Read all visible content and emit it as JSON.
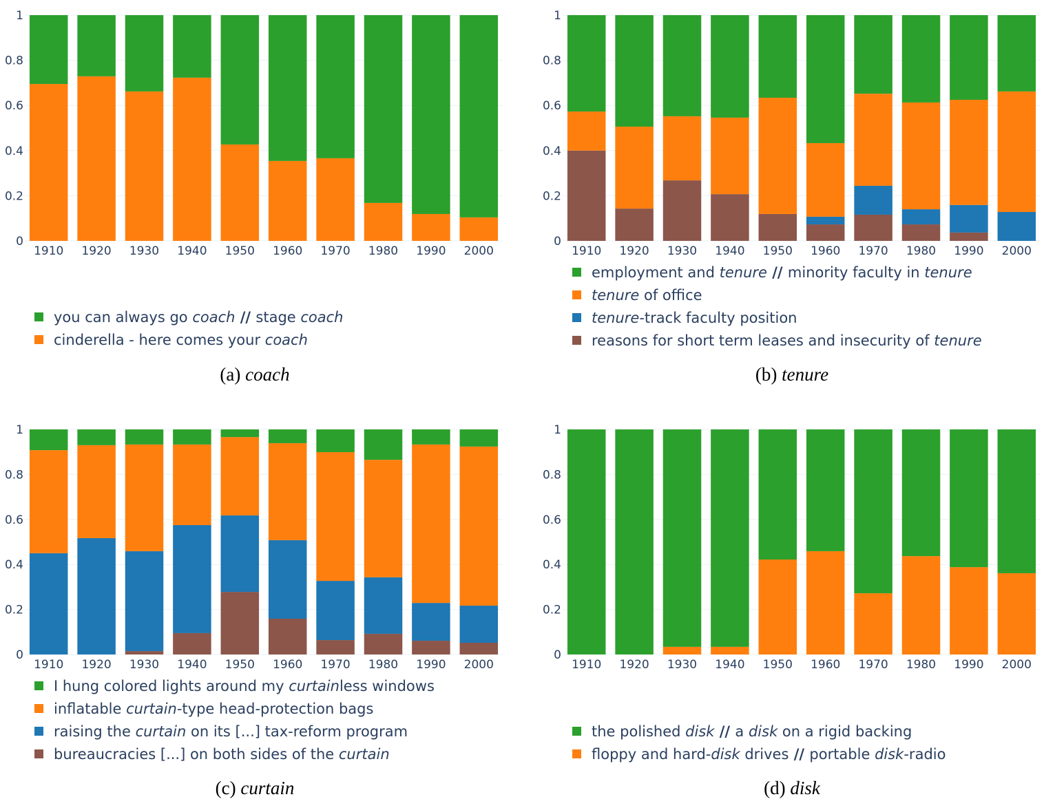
{
  "colors": {
    "green": "#2ca02c",
    "orange": "#ff7f0e",
    "blue": "#1f77b4",
    "brown": "#8c564b",
    "text": "#2a3f5f",
    "grid": "#ebf0f8"
  },
  "chart_data": [
    {
      "type": "bar",
      "stacked": true,
      "ylim": [
        0,
        1
      ],
      "yticks": [
        "0",
        "0.2",
        "0.4",
        "0.6",
        "0.8",
        "1"
      ],
      "categories": [
        "1910",
        "1920",
        "1930",
        "1940",
        "1950",
        "1960",
        "1970",
        "1980",
        "1990",
        "2000"
      ],
      "caption": {
        "label": "(a)",
        "word": "coach"
      },
      "series": [
        {
          "color": "orange",
          "values": [
            0.695,
            0.729,
            0.662,
            0.723,
            0.427,
            0.354,
            0.366,
            0.168,
            0.119,
            0.104
          ],
          "legend": [
            {
              "t": "cinderella - here comes your "
            },
            {
              "t": "coach",
              "i": true
            }
          ]
        },
        {
          "color": "green",
          "values": [
            0.305,
            0.271,
            0.338,
            0.277,
            0.573,
            0.646,
            0.634,
            0.832,
            0.881,
            0.896
          ],
          "legend": [
            {
              "t": "you can always go "
            },
            {
              "t": "coach",
              "i": true
            },
            {
              "t": " // ",
              "b": true
            },
            {
              "t": "stage "
            },
            {
              "t": "coach",
              "i": true
            }
          ]
        }
      ]
    },
    {
      "type": "bar",
      "stacked": true,
      "ylim": [
        0,
        1
      ],
      "yticks": [
        "0",
        "0.2",
        "0.4",
        "0.6",
        "0.8",
        "1"
      ],
      "categories": [
        "1910",
        "1920",
        "1930",
        "1940",
        "1950",
        "1960",
        "1970",
        "1980",
        "1990",
        "2000"
      ],
      "caption": {
        "label": "(b)",
        "word": "tenure"
      },
      "series": [
        {
          "color": "brown",
          "values": [
            0.4,
            0.143,
            0.268,
            0.207,
            0.119,
            0.073,
            0.116,
            0.073,
            0.037,
            0
          ],
          "legend": [
            {
              "t": "reasons for short term leases and insecurity of "
            },
            {
              "t": "tenure",
              "i": true
            }
          ]
        },
        {
          "color": "blue",
          "values": [
            0,
            0,
            0,
            0,
            0,
            0.034,
            0.128,
            0.067,
            0.122,
            0.128
          ],
          "legend": [
            {
              "t": "tenure",
              "i": true
            },
            {
              "t": "-track faculty position"
            }
          ]
        },
        {
          "color": "orange",
          "values": [
            0.173,
            0.363,
            0.284,
            0.339,
            0.515,
            0.326,
            0.408,
            0.473,
            0.466,
            0.534
          ],
          "legend": [
            {
              "t": "tenure",
              "i": true
            },
            {
              "t": " of office"
            }
          ]
        },
        {
          "color": "green",
          "values": [
            0.427,
            0.494,
            0.448,
            0.454,
            0.366,
            0.567,
            0.348,
            0.387,
            0.375,
            0.338
          ],
          "legend": [
            {
              "t": "employment and "
            },
            {
              "t": "tenure",
              "i": true
            },
            {
              "t": " // ",
              "b": true
            },
            {
              "t": "minority faculty in "
            },
            {
              "t": "tenure",
              "i": true
            }
          ]
        }
      ]
    },
    {
      "type": "bar",
      "stacked": true,
      "ylim": [
        0,
        1
      ],
      "yticks": [
        "0",
        "0.2",
        "0.4",
        "0.6",
        "0.8",
        "1"
      ],
      "categories": [
        "1910",
        "1920",
        "1930",
        "1940",
        "1950",
        "1960",
        "1970",
        "1980",
        "1990",
        "2000"
      ],
      "caption": {
        "label": "(c)",
        "word": "curtain"
      },
      "series": [
        {
          "color": "brown",
          "values": [
            0,
            0,
            0.015,
            0.095,
            0.278,
            0.159,
            0.064,
            0.092,
            0.061,
            0.052
          ],
          "legend": [
            {
              "t": "bureaucracies [...] on both sides of the "
            },
            {
              "t": "curtain",
              "i": true
            }
          ]
        },
        {
          "color": "blue",
          "values": [
            0.45,
            0.517,
            0.444,
            0.48,
            0.34,
            0.349,
            0.263,
            0.251,
            0.168,
            0.165
          ],
          "legend": [
            {
              "t": "raising the "
            },
            {
              "t": "curtain",
              "i": true
            },
            {
              "t": " on its [...] tax-reform program"
            }
          ]
        },
        {
          "color": "orange",
          "values": [
            0.458,
            0.413,
            0.474,
            0.358,
            0.348,
            0.431,
            0.572,
            0.522,
            0.704,
            0.707
          ],
          "legend": [
            {
              "t": "inflatable "
            },
            {
              "t": "curtain",
              "i": true
            },
            {
              "t": "-type head-protection bags"
            }
          ]
        },
        {
          "color": "green",
          "values": [
            0.092,
            0.07,
            0.067,
            0.067,
            0.034,
            0.061,
            0.101,
            0.135,
            0.067,
            0.076
          ],
          "legend": [
            {
              "t": "I hung colored lights around my "
            },
            {
              "t": "curtain",
              "i": true
            },
            {
              "t": "less windows"
            }
          ]
        }
      ]
    },
    {
      "type": "bar",
      "stacked": true,
      "ylim": [
        0,
        1
      ],
      "yticks": [
        "0",
        "0.2",
        "0.4",
        "0.6",
        "0.8",
        "1"
      ],
      "categories": [
        "1910",
        "1920",
        "1930",
        "1940",
        "1950",
        "1960",
        "1970",
        "1980",
        "1990",
        "2000"
      ],
      "caption": {
        "label": "(d)",
        "word": "disk"
      },
      "series": [
        {
          "color": "orange",
          "values": [
            0,
            0,
            0.034,
            0.034,
            0.422,
            0.459,
            0.272,
            0.437,
            0.388,
            0.361
          ],
          "legend": [
            {
              "t": "floppy and hard-"
            },
            {
              "t": "disk",
              "i": true
            },
            {
              "t": " drives"
            },
            {
              "t": " // ",
              "b": true
            },
            {
              "t": "portable "
            },
            {
              "t": "disk",
              "i": true
            },
            {
              "t": "-radio"
            }
          ]
        },
        {
          "color": "green",
          "values": [
            1,
            1,
            0.966,
            0.966,
            0.578,
            0.541,
            0.728,
            0.563,
            0.612,
            0.639
          ],
          "legend": [
            {
              "t": "the polished "
            },
            {
              "t": "disk",
              "i": true
            },
            {
              "t": " // ",
              "b": true
            },
            {
              "t": "a "
            },
            {
              "t": "disk",
              "i": true
            },
            {
              "t": " on a rigid backing"
            }
          ]
        }
      ]
    }
  ]
}
